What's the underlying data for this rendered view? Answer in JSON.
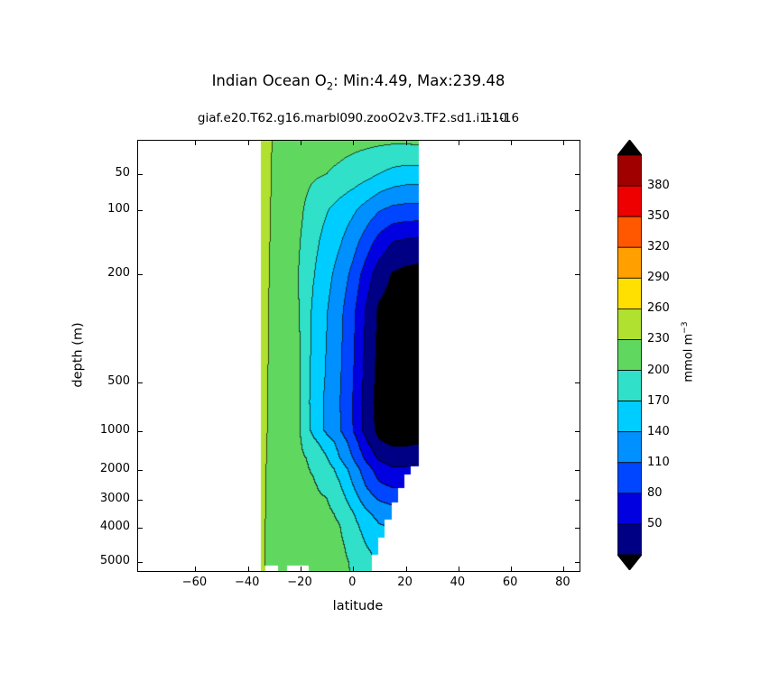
{
  "title": {
    "prefix": "Indian Ocean O",
    "sub": "2",
    "suffix": ": Min:4.49, Max:239.48"
  },
  "subtitle": {
    "main": "giaf.e20.T62.g16.marbl090.zooO2v3.TF2.sd1.i1-10",
    "overlap": "11-16"
  },
  "axes": {
    "xlabel": "latitude",
    "ylabel": "depth (m)",
    "x_tick_lats": [
      -60,
      -40,
      -20,
      0,
      20,
      40,
      60,
      80
    ],
    "x_tick_labels": [
      "−60",
      "−40",
      "−20",
      "0",
      "20",
      "40",
      "60",
      "80"
    ],
    "y_tick_depths": [
      50,
      100,
      200,
      500,
      1000,
      2000,
      3000,
      4000,
      5000
    ],
    "y_tick_labels": [
      "50",
      "100",
      "200",
      "500",
      "1000",
      "2000",
      "3000",
      "4000",
      "5000"
    ]
  },
  "colorbar": {
    "labels": [
      "380",
      "350",
      "320",
      "290",
      "260",
      "230",
      "200",
      "170",
      "140",
      "110",
      "80",
      "50"
    ],
    "colors_bottom_to_top": [
      "#000084",
      "#0000e0",
      "#0045ff",
      "#0090ff",
      "#00cdff",
      "#30e0c8",
      "#60d860",
      "#b0e030",
      "#ffe000",
      "#ffa000",
      "#ff5800",
      "#ee0000",
      "#a00000"
    ],
    "under_color": "#000000",
    "extend_top_color": "#000000",
    "extend_bottom_color": "#000000",
    "unit_prefix": "mmol m",
    "unit_sup": "−3"
  },
  "chart_data": {
    "type": "heatmap",
    "subtype": "filled-contour-section",
    "title": "Indian Ocean O2: Min:4.49, Max:239.48",
    "xlabel": "latitude",
    "ylabel": "depth (m)",
    "units": "mmol m-3",
    "min": 4.49,
    "max": 239.48,
    "xlim": [
      -81.7,
      86.1
    ],
    "lat_extent": [
      -35,
      25
    ],
    "levels": [
      20,
      50,
      80,
      110,
      140,
      170,
      200,
      230,
      260,
      290,
      320,
      350,
      380,
      410
    ],
    "lats": [
      -35,
      -30,
      -25,
      -20,
      -15,
      -10,
      -5,
      0,
      5,
      10,
      15,
      20,
      25
    ],
    "depths": [
      0,
      50,
      100,
      150,
      200,
      300,
      500,
      700,
      1000,
      1300,
      1700,
      2000,
      2500,
      3000,
      3500,
      4000,
      4500,
      5000,
      5500
    ],
    "o2_values": [
      [
        248,
        227,
        219,
        213,
        211,
        210,
        209,
        208,
        207,
        206,
        205,
        205,
        207
      ],
      [
        246,
        226,
        217,
        210,
        204,
        200,
        195,
        188,
        180,
        170,
        162,
        158,
        158
      ],
      [
        245,
        225,
        215,
        205,
        185,
        172,
        158,
        145,
        128,
        112,
        103,
        100,
        100
      ],
      [
        244,
        224,
        213,
        200,
        178,
        160,
        143,
        122,
        96,
        68,
        50,
        45,
        42
      ],
      [
        243,
        223,
        212,
        198,
        172,
        150,
        128,
        102,
        66,
        35,
        18,
        12,
        10
      ],
      [
        242,
        222,
        211,
        199,
        165,
        142,
        118,
        88,
        48,
        15,
        8,
        6,
        5
      ],
      [
        241,
        221,
        210,
        201,
        160,
        137,
        113,
        82,
        40,
        10,
        5,
        5,
        5
      ],
      [
        240,
        220,
        209,
        200,
        158,
        134,
        111,
        79,
        37,
        8,
        5,
        5,
        5
      ],
      [
        240,
        220,
        208,
        200,
        162,
        135,
        113,
        81,
        40,
        11,
        6,
        6,
        8
      ],
      [
        239,
        219,
        209,
        202,
        178,
        155,
        130,
        97,
        56,
        24,
        15,
        15,
        18
      ],
      [
        239,
        219,
        209,
        204,
        195,
        172,
        140,
        110,
        74,
        46,
        35,
        35,
        40
      ],
      [
        238,
        218,
        210,
        205,
        198,
        185,
        160,
        128,
        95,
        66,
        55,
        55,
        60
      ],
      [
        238,
        218,
        211,
        206,
        202,
        193,
        172,
        140,
        108,
        84,
        75,
        75,
        80
      ],
      [
        237,
        218,
        212,
        207,
        204,
        201,
        185,
        155,
        126,
        108,
        100,
        100,
        105
      ],
      [
        237,
        218,
        213,
        209,
        207,
        205,
        196,
        172,
        146,
        130,
        123,
        123,
        128
      ],
      [
        236,
        218,
        214,
        210,
        208,
        207,
        201,
        182,
        158,
        144,
        138,
        138,
        143
      ],
      [
        236,
        218,
        214,
        211,
        209,
        208,
        204,
        192,
        170,
        157,
        152,
        152,
        157
      ],
      [
        236,
        218,
        215,
        212,
        210,
        209,
        206,
        197,
        181,
        167,
        162,
        162,
        167
      ],
      [
        236,
        218,
        215,
        213,
        211,
        210,
        207,
        198,
        183,
        171,
        166,
        166,
        171
      ]
    ],
    "bathymetry_steps": [
      [
        -35,
        -33.5,
        5500
      ],
      [
        -33.5,
        -28.5,
        5200
      ],
      [
        -28.5,
        -25,
        5500
      ],
      [
        -25,
        -17,
        5200
      ],
      [
        -17,
        7,
        5500
      ],
      [
        7,
        9.5,
        4800
      ],
      [
        9.5,
        12,
        4300
      ],
      [
        12,
        14.5,
        3700
      ],
      [
        14.5,
        17,
        3100
      ],
      [
        17,
        19.5,
        2600
      ],
      [
        19.5,
        22,
        2150
      ],
      [
        22,
        25.01,
        1900
      ]
    ]
  }
}
